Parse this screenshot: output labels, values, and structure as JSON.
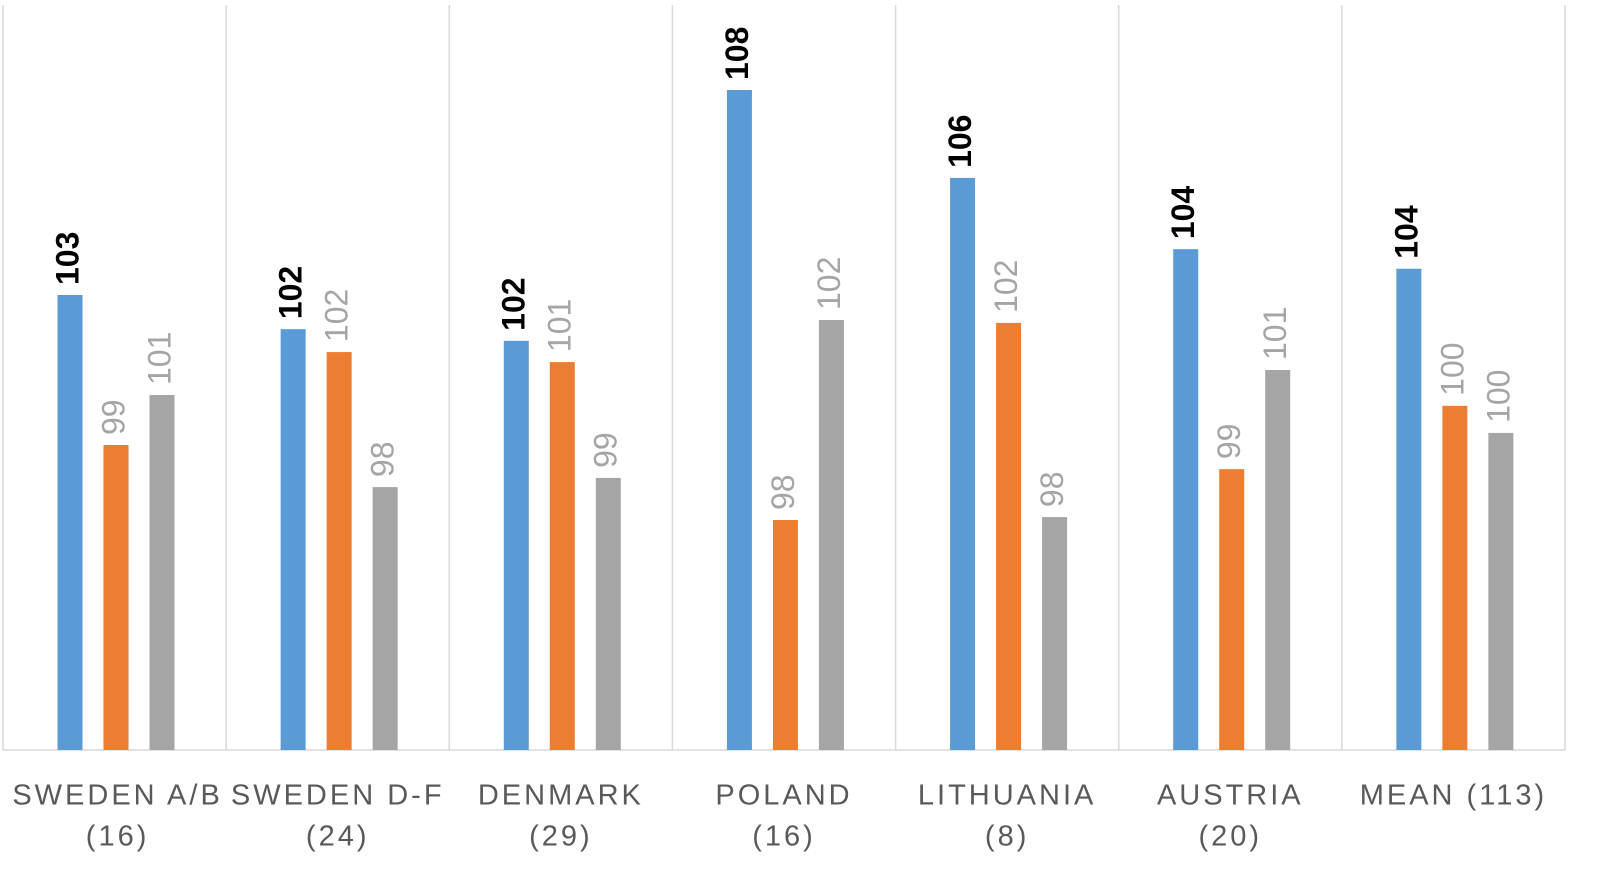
{
  "chart_data": {
    "type": "bar",
    "categories": [
      [
        "SWEDEN A/B",
        "(16)"
      ],
      [
        "SWEDEN D-F",
        "(24)"
      ],
      [
        "DENMARK",
        "(29)"
      ],
      [
        "POLAND",
        "(16)"
      ],
      [
        "LITHUANIA",
        "(8)"
      ],
      [
        "AUSTRIA",
        "(20)"
      ],
      [
        "MEAN (113)",
        null
      ]
    ],
    "series": [
      {
        "color": "#5b9bd5",
        "label_color": "#000000",
        "label_bold": true,
        "values": [
          102.92,
          102.1,
          101.82,
          107.84,
          105.73,
          104.02,
          103.55
        ],
        "value_labels": [
          "103",
          "102",
          "102",
          "108",
          "106",
          "104",
          "104"
        ]
      },
      {
        "color": "#ed7d31",
        "label_color": "#a5a5a5",
        "label_bold": false,
        "values": [
          99.32,
          101.55,
          101.31,
          97.52,
          102.25,
          98.74,
          100.26
        ],
        "value_labels": [
          "99",
          "102",
          "101",
          "98",
          "102",
          "99",
          "100"
        ]
      },
      {
        "color": "#a5a5a5",
        "label_color": "#a5a5a5",
        "label_bold": false,
        "values": [
          100.52,
          98.31,
          98.53,
          102.32,
          97.59,
          101.12,
          99.61
        ],
        "value_labels": [
          "101",
          "98",
          "99",
          "102",
          "98",
          "101",
          "100"
        ]
      }
    ],
    "ylim": [
      92,
      110
    ],
    "grid": true
  }
}
